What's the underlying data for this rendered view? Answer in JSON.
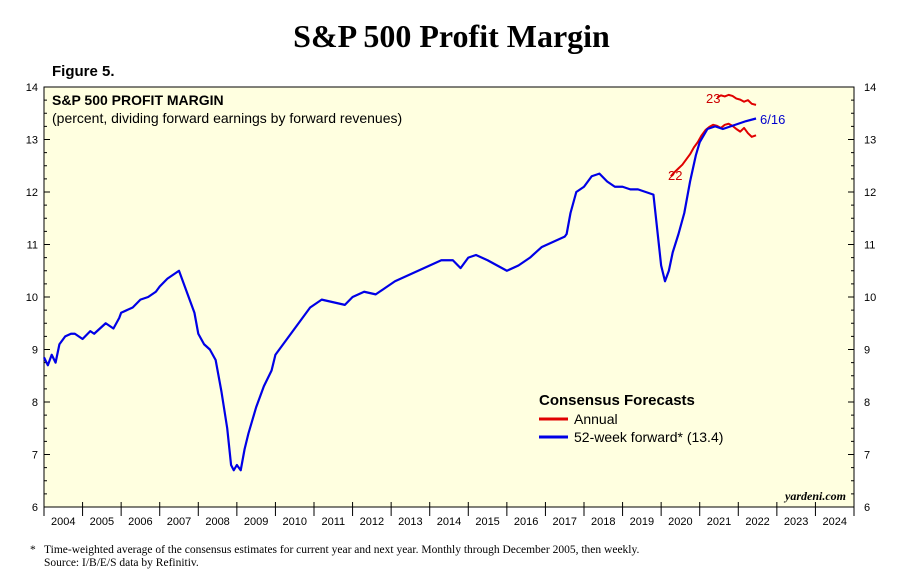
{
  "page": {
    "title": "S&P 500 Profit Margin",
    "figure_label": "Figure 5.",
    "footnote_marker": "*",
    "footnote_line1": "Time-weighted average of the consensus estimates for current year and next year. Monthly through December 2005, then weekly.",
    "footnote_line2": "Source: I/B/E/S data by Refinitiv.",
    "watermark": "yardeni.com"
  },
  "colors": {
    "plot_background": "#FFFFE0",
    "annual": "#E00000",
    "forward": "#0000E6",
    "annotation_annual": "#CC0000",
    "annotation_forward": "#0000CC"
  },
  "chart_data": {
    "type": "line",
    "title": "S&P 500 PROFIT MARGIN",
    "subtitle": "(percent, dividing forward earnings by forward revenues)",
    "legend_title": "Consensus Forecasts",
    "xlim": [
      2004,
      2025
    ],
    "ylim": [
      6,
      14
    ],
    "x_ticks": [
      "2004",
      "2005",
      "2006",
      "2007",
      "2008",
      "2009",
      "2010",
      "2011",
      "2012",
      "2013",
      "2014",
      "2015",
      "2016",
      "2017",
      "2018",
      "2019",
      "2020",
      "2021",
      "2022",
      "2023",
      "2024"
    ],
    "y_ticks": [
      6,
      7,
      8,
      9,
      10,
      11,
      12,
      13,
      14
    ],
    "annotations": {
      "label_22": "22",
      "label_23": "23",
      "label_last": "6/16"
    },
    "series": [
      {
        "name": "Annual",
        "key": "annual_22",
        "x": [
          2020.25,
          2020.35,
          2020.45,
          2020.55,
          2020.65,
          2020.75,
          2020.85,
          2020.95,
          2021.05,
          2021.15,
          2021.25,
          2021.35,
          2021.45,
          2021.55,
          2021.65,
          2021.75,
          2021.85,
          2021.95,
          2022.05,
          2022.15,
          2022.25,
          2022.35,
          2022.46
        ],
        "y": [
          12.3,
          12.38,
          12.45,
          12.52,
          12.62,
          12.72,
          12.85,
          12.95,
          13.08,
          13.18,
          13.24,
          13.28,
          13.26,
          13.22,
          13.28,
          13.3,
          13.26,
          13.2,
          13.15,
          13.22,
          13.12,
          13.05,
          13.08
        ]
      },
      {
        "name": "",
        "key": "annual_23",
        "x": [
          2021.45,
          2021.55,
          2021.65,
          2021.75,
          2021.85,
          2021.95,
          2022.05,
          2022.15,
          2022.25,
          2022.35,
          2022.46
        ],
        "y": [
          13.8,
          13.84,
          13.82,
          13.85,
          13.83,
          13.78,
          13.76,
          13.72,
          13.75,
          13.68,
          13.66
        ]
      },
      {
        "name": "52-week forward* (13.4)",
        "key": "forward",
        "x": [
          2004.0,
          2004.1,
          2004.2,
          2004.3,
          2004.4,
          2004.5,
          2004.55,
          2004.7,
          2004.8,
          2005.0,
          2005.2,
          2005.3,
          2005.6,
          2005.8,
          2005.95,
          2006.0,
          2006.3,
          2006.5,
          2006.7,
          2006.9,
          2007.0,
          2007.2,
          2007.5,
          2007.6,
          2007.75,
          2007.9,
          2008.0,
          2008.15,
          2008.3,
          2008.45,
          2008.6,
          2008.75,
          2008.85,
          2008.92,
          2009.0,
          2009.1,
          2009.2,
          2009.3,
          2009.5,
          2009.7,
          2009.9,
          2010.0,
          2010.3,
          2010.6,
          2010.9,
          2011.2,
          2011.5,
          2011.8,
          2012.0,
          2012.3,
          2012.6,
          2012.9,
          2013.1,
          2013.4,
          2013.7,
          2014.0,
          2014.3,
          2014.6,
          2014.8,
          2015.0,
          2015.2,
          2015.5,
          2015.75,
          2016.0,
          2016.3,
          2016.6,
          2016.9,
          2017.2,
          2017.5,
          2017.55,
          2017.65,
          2017.8,
          2018.0,
          2018.2,
          2018.4,
          2018.6,
          2018.8,
          2019.0,
          2019.2,
          2019.4,
          2019.6,
          2019.8,
          2020.0,
          2020.1,
          2020.2,
          2020.3,
          2020.45,
          2020.6,
          2020.75,
          2020.9,
          2021.0,
          2021.2,
          2021.4,
          2021.6,
          2021.8,
          2022.0,
          2022.2,
          2022.46
        ],
        "y": [
          8.85,
          8.7,
          8.9,
          8.75,
          9.1,
          9.2,
          9.25,
          9.3,
          9.3,
          9.2,
          9.35,
          9.3,
          9.5,
          9.4,
          9.6,
          9.7,
          9.8,
          9.95,
          10.0,
          10.1,
          10.2,
          10.35,
          10.5,
          10.3,
          10.0,
          9.7,
          9.3,
          9.1,
          9.0,
          8.8,
          8.2,
          7.5,
          6.8,
          6.7,
          6.8,
          6.7,
          7.1,
          7.4,
          7.9,
          8.3,
          8.6,
          8.9,
          9.2,
          9.5,
          9.8,
          9.95,
          9.9,
          9.85,
          10.0,
          10.1,
          10.05,
          10.2,
          10.3,
          10.4,
          10.5,
          10.6,
          10.7,
          10.7,
          10.55,
          10.75,
          10.8,
          10.7,
          10.6,
          10.5,
          10.6,
          10.75,
          10.95,
          11.05,
          11.15,
          11.2,
          11.6,
          12.0,
          12.1,
          12.3,
          12.35,
          12.2,
          12.1,
          12.1,
          12.05,
          12.05,
          12.0,
          11.95,
          10.6,
          10.3,
          10.5,
          10.85,
          11.2,
          11.6,
          12.2,
          12.7,
          12.95,
          13.2,
          13.25,
          13.2,
          13.25,
          13.3,
          13.35,
          13.4
        ]
      }
    ]
  }
}
